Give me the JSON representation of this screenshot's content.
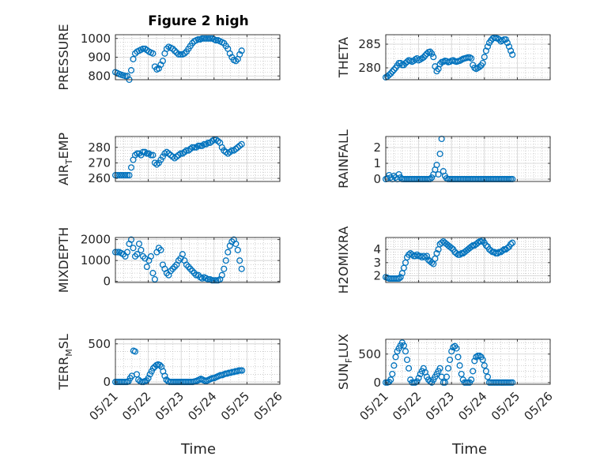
{
  "figure": {
    "title": "Figure 2 high",
    "x_label": "Time"
  },
  "colors": {
    "marker": "#0072BD",
    "axis": "#262626",
    "grid": "#b0b0b0"
  },
  "chart_data": [
    {
      "type": "scatter",
      "ylabel": "PRESSURE",
      "xlim": [
        "05/21",
        "05/25"
      ],
      "ylim": [
        780,
        1020
      ],
      "yticks": [
        800,
        900,
        1000
      ],
      "grid": true,
      "x": [
        0.0,
        0.06,
        0.12,
        0.18,
        0.24,
        0.3,
        0.36,
        0.42,
        0.48,
        0.54,
        0.6,
        0.66,
        0.72,
        0.78,
        0.84,
        0.9,
        0.96,
        1.02,
        1.08,
        1.14,
        1.2,
        1.26,
        1.32,
        1.38,
        1.44,
        1.5,
        1.56,
        1.62,
        1.68,
        1.74,
        1.8,
        1.86,
        1.92,
        1.98,
        2.04,
        2.1,
        2.16,
        2.22,
        2.28,
        2.34,
        2.4,
        2.46,
        2.52,
        2.58,
        2.64,
        2.7,
        2.76,
        2.82,
        2.88,
        2.94,
        3.0,
        3.06,
        3.12,
        3.18,
        3.24,
        3.3,
        3.36,
        3.42,
        3.48,
        3.54,
        3.6,
        3.66,
        3.72,
        3.78,
        3.84
      ],
      "y": [
        820,
        815,
        810,
        806,
        803,
        800,
        800,
        780,
        830,
        890,
        920,
        930,
        935,
        940,
        945,
        945,
        938,
        930,
        925,
        920,
        850,
        835,
        840,
        860,
        880,
        920,
        945,
        955,
        950,
        945,
        935,
        925,
        915,
        915,
        915,
        920,
        930,
        945,
        960,
        975,
        985,
        990,
        995,
        995,
        1000,
        1000,
        1000,
        1000,
        1000,
        1000,
        995,
        990,
        990,
        985,
        980,
        975,
        960,
        945,
        920,
        900,
        885,
        880,
        890,
        915,
        935
      ]
    },
    {
      "type": "scatter",
      "ylabel": "THETA",
      "xlim": [
        "05/21",
        "05/26"
      ],
      "ylim": [
        277.5,
        287
      ],
      "yticks": [
        280,
        285
      ],
      "grid": true,
      "x": [
        0.0,
        0.05,
        0.1,
        0.15,
        0.2,
        0.25,
        0.3,
        0.35,
        0.4,
        0.45,
        0.5,
        0.55,
        0.6,
        0.65,
        0.7,
        0.75,
        0.8,
        0.85,
        0.9,
        0.95,
        1.0,
        1.05,
        1.1,
        1.15,
        1.2,
        1.25,
        1.3,
        1.35,
        1.4,
        1.45,
        1.5,
        1.55,
        1.6,
        1.65,
        1.7,
        1.75,
        1.8,
        1.85,
        1.9,
        1.95,
        2.0,
        2.05,
        2.1,
        2.15,
        2.2,
        2.25,
        2.3,
        2.35,
        2.4,
        2.45,
        2.5,
        2.55,
        2.6,
        2.65,
        2.7,
        2.75,
        2.8,
        2.85,
        2.9,
        2.95,
        3.0,
        3.05,
        3.1,
        3.15,
        3.2,
        3.25,
        3.3,
        3.35,
        3.4,
        3.45,
        3.5,
        3.55,
        3.6,
        3.65,
        3.7,
        3.75,
        3.8,
        3.85
      ],
      "y": [
        278,
        278.2,
        278.5,
        278.8,
        279.2,
        279.6,
        280,
        280.5,
        281,
        281,
        280.6,
        280.6,
        281,
        281.3,
        281.6,
        281.5,
        281.3,
        281.5,
        281.8,
        282,
        281.6,
        281.8,
        282,
        282.2,
        282.6,
        283,
        283.3,
        283.4,
        283,
        282.3,
        280.3,
        279.3,
        279.8,
        280.8,
        281.2,
        281.3,
        281.5,
        281.4,
        281.2,
        281.3,
        281.5,
        281.6,
        281.4,
        281.3,
        281.4,
        281.5,
        281.7,
        281.9,
        282,
        282.1,
        282.2,
        282.2,
        282,
        280.6,
        280,
        279.8,
        280,
        280.2,
        280.5,
        281,
        282.3,
        283.6,
        284.5,
        285.3,
        285.8,
        286.2,
        286.4,
        286.3,
        286.2,
        286,
        285.6,
        285.8,
        286,
        286,
        285.3,
        284.5,
        283.6,
        282.8
      ]
    },
    {
      "type": "scatter",
      "ylabel": "AIR_TEMP",
      "ylabel_sub": "T",
      "xlim": [
        "05/21",
        "05/25"
      ],
      "ylim": [
        258,
        287
      ],
      "yticks": [
        260,
        270,
        280
      ],
      "grid": true,
      "x": [
        0.0,
        0.06,
        0.12,
        0.18,
        0.24,
        0.3,
        0.36,
        0.42,
        0.48,
        0.54,
        0.6,
        0.66,
        0.72,
        0.78,
        0.84,
        0.9,
        0.96,
        1.02,
        1.08,
        1.14,
        1.2,
        1.26,
        1.32,
        1.38,
        1.44,
        1.5,
        1.56,
        1.62,
        1.68,
        1.74,
        1.8,
        1.86,
        1.92,
        1.98,
        2.04,
        2.1,
        2.16,
        2.22,
        2.28,
        2.34,
        2.4,
        2.46,
        2.52,
        2.58,
        2.64,
        2.7,
        2.76,
        2.82,
        2.88,
        2.94,
        3.0,
        3.06,
        3.12,
        3.18,
        3.24,
        3.3,
        3.36,
        3.42,
        3.48,
        3.54,
        3.6,
        3.66,
        3.72,
        3.78,
        3.84
      ],
      "y": [
        262,
        262,
        262,
        262,
        262,
        262,
        262,
        262,
        267,
        272,
        275,
        276,
        276,
        275,
        277,
        277,
        276,
        276,
        275,
        275,
        270,
        269,
        270,
        272,
        274,
        276,
        277,
        276,
        275,
        274,
        273,
        274,
        275,
        276,
        276,
        277,
        278,
        278,
        279,
        280,
        280,
        280,
        281,
        281,
        281,
        282,
        282,
        283,
        283,
        284,
        285,
        285,
        284,
        283,
        280,
        278,
        277,
        276,
        277,
        278,
        278,
        279,
        280,
        281,
        282
      ]
    },
    {
      "type": "scatter",
      "ylabel": "RAINFALL",
      "xlim": [
        "05/21",
        "05/26"
      ],
      "ylim": [
        -0.15,
        2.7
      ],
      "yticks": [
        0,
        1,
        2
      ],
      "grid": true,
      "x": [
        0.0,
        0.05,
        0.1,
        0.15,
        0.2,
        0.25,
        0.3,
        0.35,
        0.4,
        0.45,
        0.5,
        0.55,
        0.6,
        0.65,
        0.7,
        0.75,
        0.8,
        0.85,
        0.9,
        0.95,
        1.0,
        1.05,
        1.1,
        1.15,
        1.2,
        1.25,
        1.3,
        1.35,
        1.4,
        1.45,
        1.5,
        1.55,
        1.6,
        1.65,
        1.7,
        1.75,
        1.8,
        1.85,
        1.9,
        1.95,
        2.0,
        2.05,
        2.1,
        2.15,
        2.2,
        2.25,
        2.3,
        2.35,
        2.4,
        2.45,
        2.5,
        2.55,
        2.6,
        2.65,
        2.7,
        2.75,
        2.8,
        2.85,
        2.9,
        2.95,
        3.0,
        3.05,
        3.1,
        3.15,
        3.2,
        3.25,
        3.3,
        3.35,
        3.4,
        3.45,
        3.5,
        3.55,
        3.6,
        3.65,
        3.7,
        3.75,
        3.8,
        3.85
      ],
      "y": [
        0,
        0.05,
        0.25,
        0.1,
        0,
        0.2,
        0.1,
        0,
        0.3,
        0.1,
        0,
        0,
        0,
        0,
        0,
        0,
        0,
        0,
        0,
        0,
        0,
        0,
        0,
        0,
        0,
        0,
        0,
        0,
        0.1,
        0.3,
        0.6,
        0.9,
        0.3,
        1.6,
        2.55,
        0.5,
        0.2,
        0.05,
        0,
        0,
        0,
        0,
        0,
        0,
        0,
        0,
        0,
        0,
        0,
        0,
        0,
        0,
        0,
        0,
        0,
        0,
        0,
        0,
        0,
        0,
        0,
        0,
        0,
        0,
        0,
        0,
        0,
        0,
        0,
        0,
        0,
        0,
        0,
        0,
        0,
        0,
        0,
        0
      ]
    },
    {
      "type": "scatter",
      "ylabel": "MIXDEPTH",
      "xlim": [
        "05/21",
        "05/25"
      ],
      "ylim": [
        -50,
        2100
      ],
      "yticks": [
        0,
        1000,
        2000
      ],
      "grid": true,
      "x": [
        0.0,
        0.06,
        0.12,
        0.18,
        0.24,
        0.3,
        0.36,
        0.42,
        0.48,
        0.54,
        0.6,
        0.66,
        0.72,
        0.78,
        0.84,
        0.9,
        0.96,
        1.02,
        1.08,
        1.14,
        1.2,
        1.26,
        1.32,
        1.38,
        1.44,
        1.5,
        1.56,
        1.62,
        1.68,
        1.74,
        1.8,
        1.86,
        1.92,
        1.98,
        2.04,
        2.1,
        2.16,
        2.22,
        2.28,
        2.34,
        2.4,
        2.46,
        2.52,
        2.58,
        2.64,
        2.7,
        2.76,
        2.82,
        2.88,
        2.94,
        3.0,
        3.06,
        3.12,
        3.18,
        3.24,
        3.3,
        3.36,
        3.42,
        3.48,
        3.54,
        3.6,
        3.66,
        3.72,
        3.78,
        3.84
      ],
      "y": [
        1400,
        1400,
        1400,
        1350,
        1300,
        1200,
        1400,
        1800,
        2000,
        1600,
        1200,
        1300,
        1800,
        1500,
        1200,
        1100,
        700,
        1000,
        1200,
        400,
        100,
        1400,
        1600,
        1500,
        800,
        600,
        400,
        300,
        500,
        600,
        700,
        800,
        1000,
        1100,
        1300,
        1000,
        800,
        700,
        600,
        500,
        400,
        300,
        300,
        200,
        150,
        200,
        150,
        100,
        100,
        50,
        50,
        50,
        50,
        100,
        300,
        600,
        1000,
        1400,
        1700,
        1900,
        2000,
        1800,
        1500,
        1000,
        600
      ]
    },
    {
      "type": "scatter",
      "ylabel": "H2OMIXRA",
      "xlim": [
        "05/21",
        "05/26"
      ],
      "ylim": [
        1.5,
        4.9
      ],
      "yticks": [
        2,
        3,
        4
      ],
      "grid": true,
      "x": [
        0.0,
        0.05,
        0.1,
        0.15,
        0.2,
        0.25,
        0.3,
        0.35,
        0.4,
        0.45,
        0.5,
        0.55,
        0.6,
        0.65,
        0.7,
        0.75,
        0.8,
        0.85,
        0.9,
        0.95,
        1.0,
        1.05,
        1.1,
        1.15,
        1.2,
        1.25,
        1.3,
        1.35,
        1.4,
        1.45,
        1.5,
        1.55,
        1.6,
        1.65,
        1.7,
        1.75,
        1.8,
        1.85,
        1.9,
        1.95,
        2.0,
        2.05,
        2.1,
        2.15,
        2.2,
        2.25,
        2.3,
        2.35,
        2.4,
        2.45,
        2.5,
        2.55,
        2.6,
        2.65,
        2.7,
        2.75,
        2.8,
        2.85,
        2.9,
        2.95,
        3.0,
        3.05,
        3.1,
        3.15,
        3.2,
        3.25,
        3.3,
        3.35,
        3.4,
        3.45,
        3.5,
        3.55,
        3.6,
        3.65,
        3.7,
        3.75,
        3.8,
        3.85
      ],
      "y": [
        1.9,
        1.85,
        1.8,
        1.8,
        1.8,
        1.8,
        1.8,
        1.8,
        1.8,
        1.9,
        2.2,
        2.6,
        3,
        3.4,
        3.6,
        3.7,
        3.6,
        3.5,
        3.5,
        3.6,
        3.5,
        3.5,
        3.4,
        3.5,
        3.4,
        3.5,
        3.2,
        3.1,
        3.0,
        2.9,
        3.3,
        3.7,
        4.0,
        4.4,
        4.5,
        4.6,
        4.5,
        4.4,
        4.3,
        4.2,
        4.1,
        4.0,
        3.8,
        3.7,
        3.6,
        3.6,
        3.7,
        3.7,
        3.8,
        3.9,
        4.0,
        4.1,
        4.2,
        4.3,
        4.3,
        4.4,
        4.5,
        4.6,
        4.6,
        4.7,
        4.5,
        4.3,
        4.2,
        4.0,
        3.9,
        3.8,
        3.8,
        3.7,
        3.7,
        3.8,
        3.8,
        3.9,
        4.0,
        4.0,
        4.1,
        4.2,
        4.4,
        4.5
      ]
    },
    {
      "type": "scatter",
      "ylabel": "TERR_MSL",
      "ylabel_sub": "M",
      "xlim": [
        "05/21",
        "05/26"
      ],
      "ylim": [
        -30,
        560
      ],
      "yticks": [
        0,
        500
      ],
      "grid": true,
      "x": [
        0.0,
        0.05,
        0.1,
        0.15,
        0.2,
        0.25,
        0.3,
        0.35,
        0.4,
        0.45,
        0.5,
        0.55,
        0.6,
        0.65,
        0.7,
        0.75,
        0.8,
        0.85,
        0.9,
        0.95,
        1.0,
        1.05,
        1.1,
        1.15,
        1.2,
        1.25,
        1.3,
        1.35,
        1.4,
        1.45,
        1.5,
        1.55,
        1.6,
        1.65,
        1.7,
        1.75,
        1.8,
        1.85,
        1.9,
        1.95,
        2.0,
        2.05,
        2.1,
        2.15,
        2.2,
        2.25,
        2.3,
        2.35,
        2.4,
        2.45,
        2.5,
        2.55,
        2.6,
        2.65,
        2.7,
        2.75,
        2.8,
        2.85,
        2.9,
        2.95,
        3.0,
        3.05,
        3.1,
        3.15,
        3.2,
        3.25,
        3.3,
        3.35,
        3.4,
        3.45,
        3.5,
        3.55,
        3.6,
        3.65,
        3.7,
        3.75,
        3.8,
        3.85
      ],
      "y": [
        0,
        0,
        0,
        0,
        0,
        0,
        0,
        0,
        10,
        50,
        80,
        410,
        400,
        100,
        30,
        10,
        0,
        0,
        10,
        20,
        50,
        100,
        140,
        180,
        200,
        220,
        230,
        220,
        200,
        140,
        80,
        30,
        10,
        0,
        0,
        0,
        0,
        0,
        0,
        0,
        0,
        0,
        0,
        0,
        0,
        0,
        0,
        0,
        5,
        10,
        20,
        30,
        40,
        30,
        20,
        10,
        20,
        30,
        40,
        50,
        50,
        60,
        70,
        80,
        90,
        90,
        100,
        110,
        110,
        120,
        120,
        130,
        130,
        140,
        140,
        150,
        150,
        150
      ]
    },
    {
      "type": "scatter",
      "ylabel": "SUN_FLUX",
      "ylabel_sub": "F",
      "xlim": [
        "05/21",
        "05/26"
      ],
      "ylim": [
        -30,
        760
      ],
      "yticks": [
        0,
        500
      ],
      "grid": true,
      "x": [
        0.0,
        0.05,
        0.1,
        0.15,
        0.2,
        0.25,
        0.3,
        0.35,
        0.4,
        0.45,
        0.5,
        0.55,
        0.6,
        0.65,
        0.7,
        0.75,
        0.8,
        0.85,
        0.9,
        0.95,
        1.0,
        1.05,
        1.1,
        1.15,
        1.2,
        1.25,
        1.3,
        1.35,
        1.4,
        1.45,
        1.5,
        1.55,
        1.6,
        1.65,
        1.7,
        1.75,
        1.8,
        1.85,
        1.9,
        1.95,
        2.0,
        2.05,
        2.1,
        2.15,
        2.2,
        2.25,
        2.3,
        2.35,
        2.4,
        2.45,
        2.5,
        2.55,
        2.6,
        2.65,
        2.7,
        2.75,
        2.8,
        2.85,
        2.9,
        2.95,
        3.0,
        3.05,
        3.1,
        3.15,
        3.2,
        3.25,
        3.3,
        3.35,
        3.4,
        3.45,
        3.5,
        3.55,
        3.6,
        3.65,
        3.7,
        3.75,
        3.8,
        3.85
      ],
      "y": [
        0,
        0,
        10,
        50,
        150,
        300,
        450,
        550,
        600,
        650,
        700,
        650,
        550,
        400,
        250,
        50,
        0,
        0,
        0,
        20,
        80,
        150,
        200,
        250,
        180,
        100,
        50,
        20,
        0,
        50,
        100,
        150,
        200,
        250,
        100,
        0,
        0,
        100,
        250,
        400,
        550,
        620,
        640,
        600,
        450,
        300,
        150,
        50,
        0,
        0,
        0,
        0,
        50,
        200,
        380,
        450,
        470,
        470,
        450,
        400,
        300,
        200,
        100,
        0,
        0,
        0,
        0,
        0,
        0,
        0,
        0,
        0,
        0,
        0,
        0,
        0,
        0,
        0
      ]
    }
  ]
}
